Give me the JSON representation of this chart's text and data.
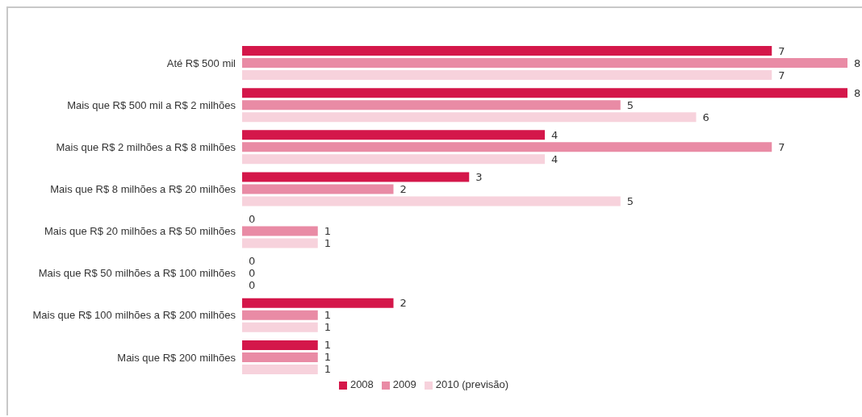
{
  "chart_data": {
    "type": "bar",
    "orientation": "horizontal",
    "categories": [
      "Até R$ 500 mil",
      "Mais que R$ 500 mil a R$ 2 milhões",
      "Mais que R$ 2 milhões a R$ 8 milhões",
      "Mais que R$ 8 milhões a R$ 20 milhões",
      "Mais que R$ 20 milhões a R$ 50 milhões",
      "Mais que R$ 50 milhões a R$ 100 milhões",
      "Mais que R$ 100 milhões a R$ 200 milhões",
      "Mais que R$ 200 milhões"
    ],
    "series": [
      {
        "name": "2008",
        "color": "#d4174a",
        "values": [
          7,
          8,
          4,
          3,
          0,
          0,
          2,
          1
        ]
      },
      {
        "name": "2009",
        "color": "#e98ba5",
        "values": [
          8,
          5,
          7,
          2,
          1,
          0,
          1,
          1
        ]
      },
      {
        "name": "2010 (previsão)",
        "color": "#f7d2dc",
        "values": [
          7,
          6,
          4,
          5,
          1,
          0,
          1,
          1
        ]
      }
    ],
    "data_labels": true,
    "legend": "bottom",
    "grid": false
  }
}
